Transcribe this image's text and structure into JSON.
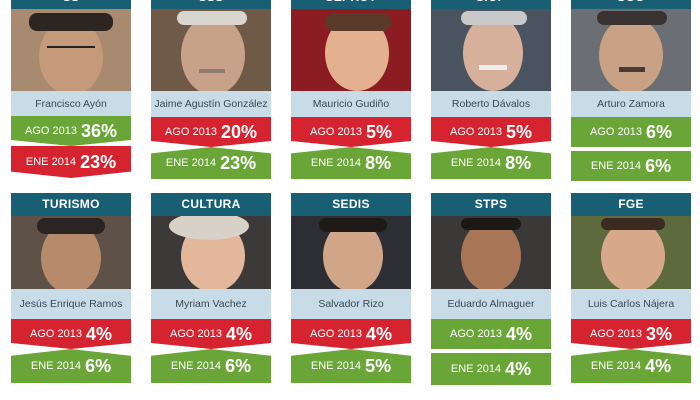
{
  "colors": {
    "header": "#195f74",
    "name_bg": "#c7dce6",
    "increase": "#d5232f",
    "decrease": "#6aa637"
  },
  "cards": [
    {
      "dept": "SS",
      "name": "Francisco Ayón",
      "ago_label": "AGO 2013",
      "ago": "36%",
      "ene_label": "ENE 2014",
      "ene": "23%",
      "ago_color": "green",
      "ene_color": "red",
      "trend": "down"
    },
    {
      "dept": "SSS",
      "name": "Jaime Agustín González",
      "ago_label": "AGO 2013",
      "ago": "20%",
      "ene_label": "ENE 2014",
      "ene": "23%",
      "ago_color": "red",
      "ene_color": "green",
      "trend": "up"
    },
    {
      "dept": "SEPROT",
      "name": "Mauricio Gudiño",
      "ago_label": "AGO 2013",
      "ago": "5%",
      "ene_label": "ENE 2014",
      "ene": "8%",
      "ago_color": "red",
      "ene_color": "green",
      "trend": "up"
    },
    {
      "dept": "SIOP",
      "name": "Roberto Dávalos",
      "ago_label": "AGO 2013",
      "ago": "5%",
      "ene_label": "ENE 2014",
      "ene": "8%",
      "ago_color": "red",
      "ene_color": "green",
      "trend": "up"
    },
    {
      "dept": "SGG",
      "name": "Arturo Zamora",
      "ago_label": "AGO 2013",
      "ago": "6%",
      "ene_label": "ENE 2014",
      "ene": "6%",
      "ago_color": "green",
      "ene_color": "green",
      "trend": "flat"
    },
    {
      "dept": "TURISMO",
      "name": "Jesús Enrique Ramos",
      "ago_label": "AGO 2013",
      "ago": "4%",
      "ene_label": "ENE 2014",
      "ene": "6%",
      "ago_color": "red",
      "ene_color": "green",
      "trend": "up"
    },
    {
      "dept": "CULTURA",
      "name": "Myriam Vachez",
      "ago_label": "AGO 2013",
      "ago": "4%",
      "ene_label": "ENE 2014",
      "ene": "6%",
      "ago_color": "red",
      "ene_color": "green",
      "trend": "up"
    },
    {
      "dept": "SEDIS",
      "name": "Salvador Rizo",
      "ago_label": "AGO 2013",
      "ago": "4%",
      "ene_label": "ENE 2014",
      "ene": "5%",
      "ago_color": "red",
      "ene_color": "green",
      "trend": "up"
    },
    {
      "dept": "STPS",
      "name": "Eduardo Almaguer",
      "ago_label": "AGO 2013",
      "ago": "4%",
      "ene_label": "ENE 2014",
      "ene": "4%",
      "ago_color": "green",
      "ene_color": "green",
      "trend": "flat"
    },
    {
      "dept": "FGE",
      "name": "Luis Carlos Nájera",
      "ago_label": "AGO 2013",
      "ago": "3%",
      "ene_label": "ENE 2014",
      "ene": "4%",
      "ago_color": "red",
      "ene_color": "green",
      "trend": "up"
    }
  ]
}
